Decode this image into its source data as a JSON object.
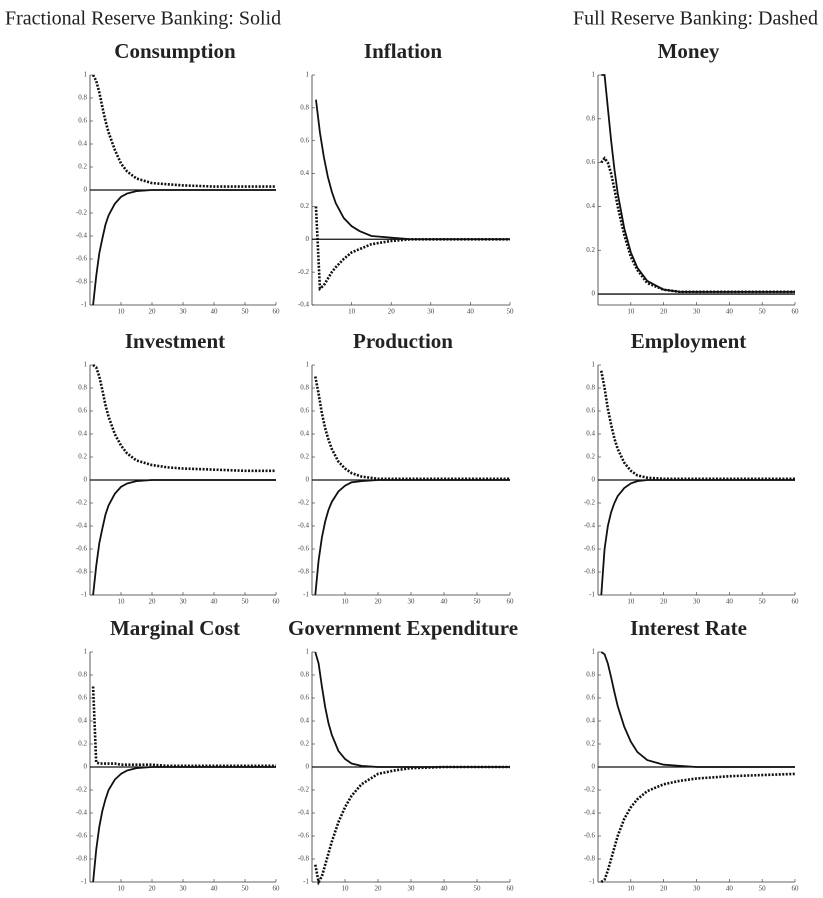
{
  "header": {
    "solid_note": "Fractional Reserve Banking: Solid",
    "dashed_note": "Full Reserve Banking: Dashed"
  },
  "chart_data": [
    {
      "type": "line",
      "title": "Consumption",
      "x": [
        1,
        2,
        3,
        4,
        5,
        6,
        8,
        10,
        12,
        15,
        20,
        25,
        30,
        40,
        50,
        60
      ],
      "xlim": [
        0,
        60
      ],
      "xticks": [
        10,
        20,
        30,
        40,
        50,
        60
      ],
      "ylim": [
        -1,
        1
      ],
      "yticks": [
        -1,
        -0.8,
        -0.6,
        -0.4,
        -0.2,
        0,
        0.2,
        0.4,
        0.6,
        0.8,
        1
      ],
      "zero_line": true,
      "series": [
        {
          "style": "solid",
          "color": "#111",
          "values": [
            -1,
            -0.75,
            -0.55,
            -0.42,
            -0.3,
            -0.22,
            -0.12,
            -0.06,
            -0.03,
            -0.01,
            0,
            0,
            0,
            0,
            0,
            0
          ]
        },
        {
          "style": "dashed",
          "color": "#111",
          "values": [
            1,
            0.95,
            0.85,
            0.72,
            0.6,
            0.5,
            0.35,
            0.23,
            0.16,
            0.1,
            0.06,
            0.05,
            0.04,
            0.03,
            0.03,
            0.03
          ]
        }
      ]
    },
    {
      "type": "line",
      "title": "Inflation",
      "x": [
        1,
        2,
        3,
        4,
        5,
        6,
        8,
        10,
        12,
        15,
        20,
        25,
        30,
        40,
        50
      ],
      "xlim": [
        0,
        50
      ],
      "xticks": [
        10,
        20,
        30,
        40,
        50
      ],
      "ylim": [
        -0.4,
        1
      ],
      "yticks": [
        -0.4,
        -0.2,
        0,
        0.2,
        0.4,
        0.6,
        0.8,
        1
      ],
      "zero_line": true,
      "series": [
        {
          "style": "solid",
          "color": "#111",
          "values": [
            0.85,
            0.65,
            0.5,
            0.38,
            0.29,
            0.22,
            0.13,
            0.08,
            0.05,
            0.02,
            0.01,
            0,
            0,
            0,
            0
          ]
        },
        {
          "style": "dashed",
          "color": "#111",
          "values": [
            0.2,
            -0.3,
            -0.28,
            -0.24,
            -0.2,
            -0.17,
            -0.12,
            -0.08,
            -0.06,
            -0.03,
            -0.01,
            0,
            0,
            0,
            0
          ]
        }
      ]
    },
    {
      "type": "line",
      "title": "Money",
      "x": [
        1,
        2,
        3,
        4,
        5,
        6,
        8,
        10,
        12,
        15,
        20,
        25,
        30,
        40,
        50,
        60
      ],
      "xlim": [
        0,
        60
      ],
      "xticks": [
        10,
        20,
        30,
        40,
        50,
        60
      ],
      "ylim": [
        -0.05,
        1
      ],
      "yticks": [
        0,
        0.2,
        0.4,
        0.6,
        0.8,
        1
      ],
      "zero_line": true,
      "series": [
        {
          "style": "solid",
          "color": "#111",
          "values": [
            1,
            1,
            0.85,
            0.7,
            0.57,
            0.46,
            0.3,
            0.19,
            0.12,
            0.06,
            0.02,
            0.01,
            0.01,
            0.01,
            0.01,
            0.01
          ]
        },
        {
          "style": "dashed",
          "color": "#111",
          "values": [
            0.6,
            0.62,
            0.6,
            0.55,
            0.48,
            0.4,
            0.27,
            0.17,
            0.11,
            0.05,
            0.02,
            0.01,
            0.01,
            0.01,
            0.01,
            0.01
          ]
        }
      ]
    },
    {
      "type": "line",
      "title": "Investment",
      "x": [
        1,
        2,
        3,
        4,
        5,
        6,
        8,
        10,
        12,
        15,
        20,
        25,
        30,
        40,
        50,
        60
      ],
      "xlim": [
        0,
        60
      ],
      "xticks": [
        10,
        20,
        30,
        40,
        50,
        60
      ],
      "ylim": [
        -1,
        1
      ],
      "yticks": [
        -1,
        -0.8,
        -0.6,
        -0.4,
        -0.2,
        0,
        0.2,
        0.4,
        0.6,
        0.8,
        1
      ],
      "zero_line": true,
      "series": [
        {
          "style": "solid",
          "color": "#111",
          "values": [
            -1,
            -0.75,
            -0.55,
            -0.42,
            -0.3,
            -0.22,
            -0.12,
            -0.06,
            -0.03,
            -0.01,
            0,
            0,
            0,
            0,
            0,
            0
          ]
        },
        {
          "style": "dashed",
          "color": "#111",
          "values": [
            1,
            0.98,
            0.9,
            0.78,
            0.65,
            0.55,
            0.4,
            0.3,
            0.23,
            0.17,
            0.13,
            0.11,
            0.1,
            0.09,
            0.08,
            0.08
          ]
        }
      ]
    },
    {
      "type": "line",
      "title": "Production",
      "x": [
        1,
        2,
        3,
        4,
        5,
        6,
        8,
        10,
        12,
        15,
        20,
        25,
        30,
        40,
        50,
        60
      ],
      "xlim": [
        0,
        60
      ],
      "xticks": [
        10,
        20,
        30,
        40,
        50,
        60
      ],
      "ylim": [
        -1,
        1
      ],
      "yticks": [
        -1,
        -0.8,
        -0.6,
        -0.4,
        -0.2,
        0,
        0.2,
        0.4,
        0.6,
        0.8,
        1
      ],
      "zero_line": true,
      "series": [
        {
          "style": "solid",
          "color": "#111",
          "values": [
            -1,
            -0.7,
            -0.5,
            -0.36,
            -0.26,
            -0.19,
            -0.1,
            -0.05,
            -0.02,
            -0.01,
            0,
            0,
            0,
            0,
            0,
            0
          ]
        },
        {
          "style": "dashed",
          "color": "#111",
          "values": [
            0.9,
            0.75,
            0.58,
            0.45,
            0.35,
            0.27,
            0.16,
            0.1,
            0.06,
            0.03,
            0.01,
            0.01,
            0.01,
            0.01,
            0.01,
            0.01
          ]
        }
      ]
    },
    {
      "type": "line",
      "title": "Employment",
      "x": [
        1,
        2,
        3,
        4,
        5,
        6,
        8,
        10,
        12,
        15,
        20,
        25,
        30,
        40,
        50,
        60
      ],
      "xlim": [
        0,
        60
      ],
      "xticks": [
        10,
        20,
        30,
        40,
        50,
        60
      ],
      "ylim": [
        -1,
        1
      ],
      "yticks": [
        -1,
        -0.8,
        -0.6,
        -0.4,
        -0.2,
        0,
        0.2,
        0.4,
        0.6,
        0.8,
        1
      ],
      "zero_line": true,
      "series": [
        {
          "style": "solid",
          "color": "#111",
          "values": [
            -1,
            -0.6,
            -0.4,
            -0.28,
            -0.2,
            -0.14,
            -0.07,
            -0.03,
            -0.01,
            0,
            0,
            0,
            0,
            0,
            0,
            0
          ]
        },
        {
          "style": "dashed",
          "color": "#111",
          "values": [
            0.95,
            0.8,
            0.62,
            0.48,
            0.36,
            0.27,
            0.15,
            0.08,
            0.04,
            0.02,
            0.01,
            0.01,
            0.01,
            0.01,
            0.01,
            0.01
          ]
        }
      ]
    },
    {
      "type": "line",
      "title": "Marginal Cost",
      "x": [
        1,
        2,
        3,
        4,
        5,
        6,
        8,
        10,
        12,
        15,
        20,
        25,
        30,
        40,
        50,
        60
      ],
      "xlim": [
        0,
        60
      ],
      "xticks": [
        10,
        20,
        30,
        40,
        50,
        60
      ],
      "ylim": [
        -1,
        1
      ],
      "yticks": [
        -1,
        -0.8,
        -0.6,
        -0.4,
        -0.2,
        0,
        0.2,
        0.4,
        0.6,
        0.8,
        1
      ],
      "zero_line": true,
      "series": [
        {
          "style": "solid",
          "color": "#111",
          "values": [
            -1,
            -0.72,
            -0.52,
            -0.38,
            -0.28,
            -0.2,
            -0.11,
            -0.06,
            -0.03,
            -0.01,
            0,
            0,
            0,
            0,
            0,
            0
          ]
        },
        {
          "style": "dashed",
          "color": "#111",
          "values": [
            0.7,
            0.04,
            0.03,
            0.03,
            0.03,
            0.03,
            0.03,
            0.02,
            0.02,
            0.02,
            0.02,
            0.01,
            0.01,
            0.01,
            0.01,
            0.01
          ]
        }
      ]
    },
    {
      "type": "line",
      "title": "Government Expenditure",
      "x": [
        1,
        2,
        3,
        4,
        5,
        6,
        8,
        10,
        12,
        15,
        20,
        25,
        30,
        40,
        50,
        60
      ],
      "xlim": [
        0,
        60
      ],
      "xticks": [
        10,
        20,
        30,
        40,
        50,
        60
      ],
      "ylim": [
        -1,
        1
      ],
      "yticks": [
        -1,
        -0.8,
        -0.6,
        -0.4,
        -0.2,
        0,
        0.2,
        0.4,
        0.6,
        0.8,
        1
      ],
      "zero_line": true,
      "series": [
        {
          "style": "solid",
          "color": "#111",
          "values": [
            1,
            0.9,
            0.7,
            0.52,
            0.38,
            0.28,
            0.14,
            0.07,
            0.03,
            0.01,
            0,
            0,
            0,
            0,
            0,
            0
          ]
        },
        {
          "style": "dashed",
          "color": "#111",
          "values": [
            -0.85,
            -1,
            -0.95,
            -0.85,
            -0.75,
            -0.65,
            -0.48,
            -0.35,
            -0.25,
            -0.15,
            -0.06,
            -0.03,
            -0.01,
            0,
            0,
            0
          ]
        }
      ]
    },
    {
      "type": "line",
      "title": "Interest Rate",
      "x": [
        1,
        2,
        3,
        4,
        5,
        6,
        8,
        10,
        12,
        15,
        20,
        25,
        30,
        40,
        50,
        60
      ],
      "xlim": [
        0,
        60
      ],
      "xticks": [
        10,
        20,
        30,
        40,
        50,
        60
      ],
      "ylim": [
        -1,
        1
      ],
      "yticks": [
        -1,
        -0.8,
        -0.6,
        -0.4,
        -0.2,
        0,
        0.2,
        0.4,
        0.6,
        0.8,
        1
      ],
      "zero_line": true,
      "series": [
        {
          "style": "solid",
          "color": "#111",
          "values": [
            1,
            0.98,
            0.9,
            0.78,
            0.65,
            0.53,
            0.35,
            0.22,
            0.13,
            0.06,
            0.02,
            0.01,
            0,
            0,
            0,
            0
          ]
        },
        {
          "style": "dashed",
          "color": "#111",
          "values": [
            -1,
            -0.98,
            -0.9,
            -0.8,
            -0.7,
            -0.6,
            -0.45,
            -0.35,
            -0.28,
            -0.21,
            -0.15,
            -0.12,
            -0.1,
            -0.08,
            -0.07,
            -0.06
          ]
        }
      ]
    }
  ]
}
